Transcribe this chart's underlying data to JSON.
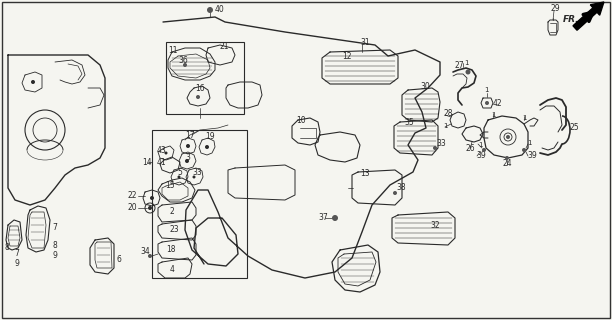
{
  "background_color": "#f5f5f0",
  "line_color": "#2a2a2a",
  "figsize": [
    6.12,
    3.2
  ],
  "dpi": 100,
  "border": [
    2,
    2,
    608,
    316
  ]
}
